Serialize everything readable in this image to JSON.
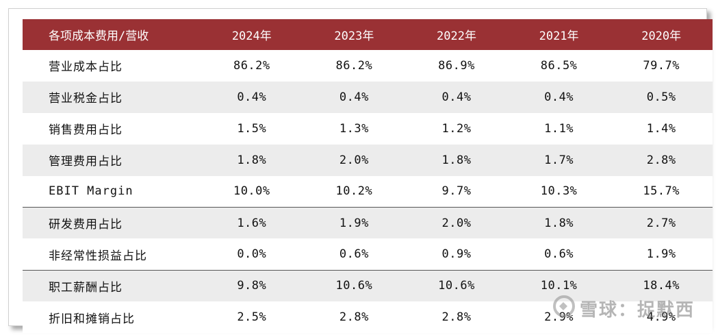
{
  "table": {
    "header": [
      "各项成本费用/营收",
      "2024年",
      "2023年",
      "2022年",
      "2021年",
      "2020年"
    ],
    "rows": [
      {
        "label": "营业成本占比",
        "values": [
          "86.2%",
          "86.2%",
          "86.9%",
          "86.5%",
          "79.7%"
        ]
      },
      {
        "label": "营业税金占比",
        "values": [
          "0.4%",
          "0.4%",
          "0.4%",
          "0.4%",
          "0.5%"
        ]
      },
      {
        "label": "销售费用占比",
        "values": [
          "1.5%",
          "1.3%",
          "1.2%",
          "1.1%",
          "1.4%"
        ]
      },
      {
        "label": "管理费用占比",
        "values": [
          "1.8%",
          "2.0%",
          "1.8%",
          "1.7%",
          "2.8%"
        ]
      },
      {
        "label": "EBIT Margin",
        "values": [
          "10.0%",
          "10.2%",
          "9.7%",
          "10.3%",
          "15.7%"
        ]
      },
      {
        "label": "研发费用占比",
        "values": [
          "1.6%",
          "1.9%",
          "2.0%",
          "1.8%",
          "2.7%"
        ]
      },
      {
        "label": "非经常性损益占比",
        "values": [
          "0.0%",
          "0.6%",
          "0.9%",
          "0.6%",
          "1.9%"
        ]
      },
      {
        "label": "职工薪酬占比",
        "values": [
          "9.8%",
          "10.6%",
          "10.6%",
          "10.1%",
          "18.4%"
        ]
      },
      {
        "label": "折旧和摊销占比",
        "values": [
          "2.5%",
          "2.8%",
          "2.8%",
          "2.9%",
          "4.9%"
        ]
      }
    ]
  },
  "watermark": {
    "text": "雪球：捉默西",
    "icon": "snowball-logo-icon"
  },
  "colors": {
    "header_bg": "#9a3134",
    "header_text": "#ffffff",
    "stripe": "#ececec"
  }
}
